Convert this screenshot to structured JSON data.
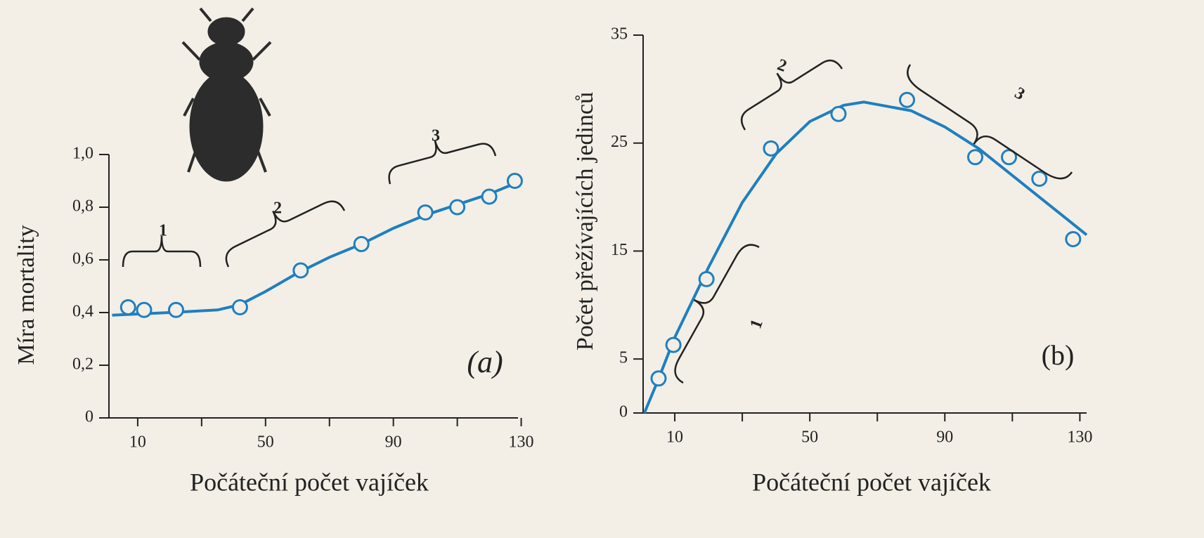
{
  "chart_data": [
    {
      "type": "scatter",
      "y_label": "Míra mortality",
      "x_label": "Počáteční počet vajíček",
      "color": "#1f7fc0",
      "xlim": [
        1,
        129
      ],
      "xticks": [
        10,
        50,
        90,
        130
      ],
      "xminor_ticks": [
        30,
        70,
        110
      ],
      "ylim": [
        0,
        1.0
      ],
      "yticks": [
        0,
        {
          "value": 0.2,
          "label": "0,2"
        },
        {
          "value": 0.4,
          "label": "0,4"
        },
        {
          "value": 0.6,
          "label": "0,6"
        },
        {
          "value": 0.8,
          "label": "0,8"
        },
        {
          "value": 1.0,
          "label": "1,0"
        }
      ],
      "points": {
        "x": [
          7,
          12,
          22,
          42,
          61,
          80,
          100,
          110,
          120,
          128
        ],
        "values": [
          0.42,
          0.41,
          0.41,
          0.42,
          0.56,
          0.66,
          0.78,
          0.8,
          0.84,
          0.9
        ]
      },
      "curve": {
        "x": [
          2,
          20,
          35,
          42,
          50,
          60,
          70,
          80,
          90,
          100,
          110,
          120,
          130
        ],
        "values": [
          0.39,
          0.4,
          0.41,
          0.43,
          0.48,
          0.55,
          0.61,
          0.66,
          0.72,
          0.77,
          0.81,
          0.85,
          0.9
        ]
      },
      "annotations": [
        "1",
        "2",
        "3",
        "(a)"
      ]
    },
    {
      "type": "scatter",
      "y_label": "Počet přežívajících jedinců",
      "x_label": "Počáteční počet vajíček",
      "color": "#1f7fc0",
      "xlim": [
        0,
        132
      ],
      "xticks": [
        10,
        50,
        90,
        130
      ],
      "xminor_ticks": [
        30,
        70,
        110
      ],
      "ylim": [
        0,
        35
      ],
      "yticks": [
        0,
        5,
        15,
        25,
        35
      ],
      "points": {
        "x": [
          5.2,
          9.6,
          19.4,
          38.5,
          58.5,
          78.8,
          99,
          109,
          118,
          128
        ],
        "values": [
          3.2,
          6.3,
          12.4,
          24.5,
          27.7,
          29,
          23.7,
          23.7,
          21.7,
          16.1
        ]
      },
      "curve": {
        "x": [
          1,
          5,
          10,
          20,
          30,
          40,
          50,
          60,
          66,
          80,
          90,
          100,
          110,
          120,
          132
        ],
        "values": [
          0,
          3,
          7,
          13.5,
          19.5,
          24,
          27,
          28.5,
          28.8,
          28,
          26.5,
          24.5,
          22,
          19.5,
          16.5
        ]
      },
      "annotations": [
        "1",
        "2",
        "3",
        "(b)"
      ]
    }
  ]
}
